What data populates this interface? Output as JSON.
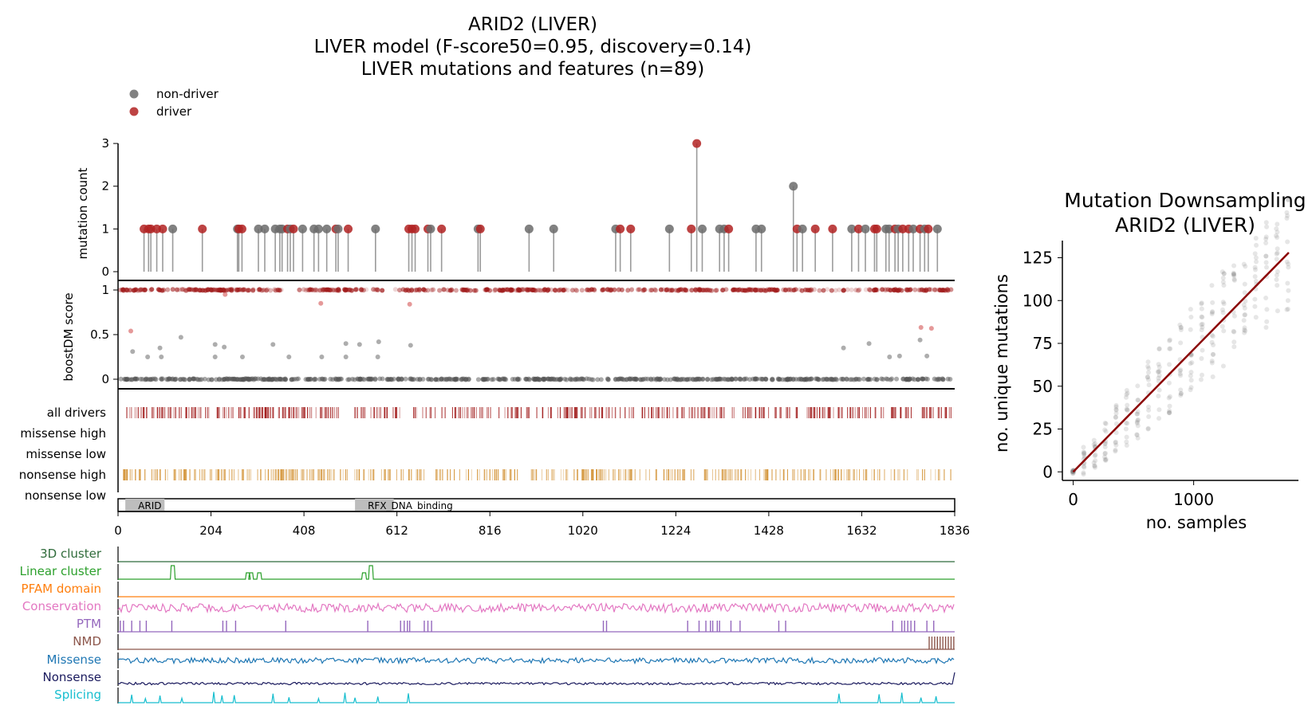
{
  "main_title": [
    "ARID2 (LIVER)",
    "LIVER model (F-score50=0.95, discovery=0.14)",
    "LIVER mutations and features (n=89)"
  ],
  "legend": [
    {
      "label": "non-driver",
      "color": "#6b6b6b"
    },
    {
      "label": "driver",
      "color": "#b22222"
    }
  ],
  "chart_data": [
    {
      "type": "scatter",
      "name": "needle plot",
      "ylabel": "mutation count",
      "ylim": [
        0,
        3
      ],
      "yticks": [
        "0",
        "1",
        "2",
        "3"
      ],
      "xlim": [
        0,
        1836
      ],
      "points": [
        {
          "pos": 57,
          "count": 1,
          "driver": true
        },
        {
          "pos": 67,
          "count": 1,
          "driver": true
        },
        {
          "pos": 72,
          "count": 1,
          "driver": true
        },
        {
          "pos": 85,
          "count": 1,
          "driver": true
        },
        {
          "pos": 98,
          "count": 1,
          "driver": true
        },
        {
          "pos": 120,
          "count": 1,
          "driver": false
        },
        {
          "pos": 185,
          "count": 1,
          "driver": true
        },
        {
          "pos": 262,
          "count": 1,
          "driver": false
        },
        {
          "pos": 265,
          "count": 1,
          "driver": true
        },
        {
          "pos": 272,
          "count": 1,
          "driver": true
        },
        {
          "pos": 308,
          "count": 1,
          "driver": false
        },
        {
          "pos": 322,
          "count": 1,
          "driver": false
        },
        {
          "pos": 345,
          "count": 1,
          "driver": false
        },
        {
          "pos": 355,
          "count": 1,
          "driver": false
        },
        {
          "pos": 360,
          "count": 1,
          "driver": false
        },
        {
          "pos": 372,
          "count": 1,
          "driver": true
        },
        {
          "pos": 378,
          "count": 1,
          "driver": false
        },
        {
          "pos": 385,
          "count": 1,
          "driver": true
        },
        {
          "pos": 405,
          "count": 1,
          "driver": false
        },
        {
          "pos": 430,
          "count": 1,
          "driver": false
        },
        {
          "pos": 440,
          "count": 1,
          "driver": false
        },
        {
          "pos": 458,
          "count": 1,
          "driver": false
        },
        {
          "pos": 478,
          "count": 1,
          "driver": true
        },
        {
          "pos": 483,
          "count": 1,
          "driver": false
        },
        {
          "pos": 505,
          "count": 1,
          "driver": true
        },
        {
          "pos": 565,
          "count": 1,
          "driver": false
        },
        {
          "pos": 638,
          "count": 1,
          "driver": true
        },
        {
          "pos": 645,
          "count": 1,
          "driver": true
        },
        {
          "pos": 652,
          "count": 1,
          "driver": true
        },
        {
          "pos": 680,
          "count": 1,
          "driver": true
        },
        {
          "pos": 686,
          "count": 1,
          "driver": false
        },
        {
          "pos": 710,
          "count": 1,
          "driver": true
        },
        {
          "pos": 790,
          "count": 1,
          "driver": false
        },
        {
          "pos": 795,
          "count": 1,
          "driver": true
        },
        {
          "pos": 902,
          "count": 1,
          "driver": false
        },
        {
          "pos": 956,
          "count": 1,
          "driver": false
        },
        {
          "pos": 1092,
          "count": 1,
          "driver": false
        },
        {
          "pos": 1102,
          "count": 1,
          "driver": true
        },
        {
          "pos": 1125,
          "count": 1,
          "driver": true
        },
        {
          "pos": 1210,
          "count": 1,
          "driver": false
        },
        {
          "pos": 1258,
          "count": 1,
          "driver": true
        },
        {
          "pos": 1270,
          "count": 3,
          "driver": true
        },
        {
          "pos": 1282,
          "count": 1,
          "driver": false
        },
        {
          "pos": 1320,
          "count": 1,
          "driver": false
        },
        {
          "pos": 1330,
          "count": 1,
          "driver": false
        },
        {
          "pos": 1340,
          "count": 1,
          "driver": true
        },
        {
          "pos": 1400,
          "count": 1,
          "driver": false
        },
        {
          "pos": 1412,
          "count": 1,
          "driver": false
        },
        {
          "pos": 1482,
          "count": 2,
          "driver": false
        },
        {
          "pos": 1490,
          "count": 1,
          "driver": true
        },
        {
          "pos": 1502,
          "count": 1,
          "driver": false
        },
        {
          "pos": 1530,
          "count": 1,
          "driver": true
        },
        {
          "pos": 1568,
          "count": 1,
          "driver": true
        },
        {
          "pos": 1610,
          "count": 1,
          "driver": false
        },
        {
          "pos": 1625,
          "count": 1,
          "driver": true
        },
        {
          "pos": 1640,
          "count": 1,
          "driver": false
        },
        {
          "pos": 1660,
          "count": 1,
          "driver": true
        },
        {
          "pos": 1665,
          "count": 1,
          "driver": true
        },
        {
          "pos": 1685,
          "count": 1,
          "driver": false
        },
        {
          "pos": 1692,
          "count": 1,
          "driver": false
        },
        {
          "pos": 1705,
          "count": 1,
          "driver": true
        },
        {
          "pos": 1712,
          "count": 1,
          "driver": false
        },
        {
          "pos": 1722,
          "count": 1,
          "driver": true
        },
        {
          "pos": 1735,
          "count": 1,
          "driver": true
        },
        {
          "pos": 1745,
          "count": 1,
          "driver": false
        },
        {
          "pos": 1760,
          "count": 1,
          "driver": true
        },
        {
          "pos": 1770,
          "count": 1,
          "driver": false
        },
        {
          "pos": 1778,
          "count": 1,
          "driver": true
        },
        {
          "pos": 1798,
          "count": 1,
          "driver": false
        }
      ]
    },
    {
      "type": "scatter",
      "name": "boostDM score track",
      "ylabel": "boostDM score",
      "ylim": [
        0,
        1
      ],
      "yticks": [
        "0",
        "0.5",
        "1"
      ],
      "xlim": [
        0,
        1836
      ],
      "outliers": [
        {
          "pos": 28,
          "score": 0.54,
          "driver": true
        },
        {
          "pos": 32,
          "score": 0.31,
          "driver": false
        },
        {
          "pos": 65,
          "score": 0.25,
          "driver": false
        },
        {
          "pos": 92,
          "score": 0.35,
          "driver": false
        },
        {
          "pos": 95,
          "score": 0.25,
          "driver": false
        },
        {
          "pos": 138,
          "score": 0.47,
          "driver": false
        },
        {
          "pos": 213,
          "score": 0.39,
          "driver": false
        },
        {
          "pos": 213,
          "score": 0.25,
          "driver": false
        },
        {
          "pos": 233,
          "score": 0.36,
          "driver": false
        },
        {
          "pos": 235,
          "score": 0.95,
          "driver": true
        },
        {
          "pos": 273,
          "score": 0.25,
          "driver": false
        },
        {
          "pos": 340,
          "score": 0.39,
          "driver": false
        },
        {
          "pos": 375,
          "score": 0.25,
          "driver": false
        },
        {
          "pos": 445,
          "score": 0.85,
          "driver": true
        },
        {
          "pos": 447,
          "score": 0.25,
          "driver": false
        },
        {
          "pos": 500,
          "score": 0.4,
          "driver": false
        },
        {
          "pos": 500,
          "score": 0.25,
          "driver": false
        },
        {
          "pos": 530,
          "score": 0.39,
          "driver": false
        },
        {
          "pos": 570,
          "score": 0.25,
          "driver": false
        },
        {
          "pos": 572,
          "score": 0.42,
          "driver": false
        },
        {
          "pos": 640,
          "score": 0.84,
          "driver": true
        },
        {
          "pos": 642,
          "score": 0.38,
          "driver": false
        },
        {
          "pos": 1592,
          "score": 0.35,
          "driver": false
        },
        {
          "pos": 1648,
          "score": 0.4,
          "driver": false
        },
        {
          "pos": 1693,
          "score": 0.25,
          "driver": false
        },
        {
          "pos": 1715,
          "score": 0.26,
          "driver": false
        },
        {
          "pos": 1760,
          "score": 0.44,
          "driver": false
        },
        {
          "pos": 1762,
          "score": 0.58,
          "driver": true
        },
        {
          "pos": 1785,
          "score": 0.57,
          "driver": true
        },
        {
          "pos": 1775,
          "score": 0.26,
          "driver": false
        }
      ]
    },
    {
      "type": "heatmap",
      "name": "consequence tracks",
      "rows": [
        "all drivers",
        "missense high",
        "missense low",
        "nonsense high",
        "nonsense low"
      ],
      "row_colors": [
        "#a11b1b",
        "#a11b1b",
        "#a11b1b",
        "#d4953a",
        "#d4953a"
      ],
      "domains": [
        {
          "name": "ARID",
          "start": 16,
          "end": 102
        },
        {
          "name": "RFX_DNA_binding",
          "start": 520,
          "end": 605
        }
      ],
      "xticks": [
        "0",
        "204",
        "408",
        "612",
        "816",
        "1020",
        "1224",
        "1428",
        "1632",
        "1836"
      ],
      "xlim": [
        0,
        1836
      ]
    },
    {
      "type": "line",
      "name": "feature tracks",
      "tracks": [
        {
          "label": "3D cluster",
          "color": "#2f6b3a"
        },
        {
          "label": "Linear cluster",
          "color": "#2ca02c"
        },
        {
          "label": "PFAM domain",
          "color": "#ff7f0e"
        },
        {
          "label": "Conservation",
          "color": "#e377c2"
        },
        {
          "label": "PTM",
          "color": "#9467bd"
        },
        {
          "label": "NMD",
          "color": "#8c564b"
        },
        {
          "label": "Missense",
          "color": "#1f77b4"
        },
        {
          "label": "Nonsense",
          "color": "#1a1a5e"
        },
        {
          "label": "Splicing",
          "color": "#17becf"
        }
      ],
      "linear_cluster_peaks": [
        120,
        285,
        292,
        310,
        540,
        555
      ],
      "ptm_sites": [
        5,
        12,
        30,
        48,
        62,
        118,
        230,
        238,
        258,
        368,
        548,
        620,
        628,
        635,
        640,
        672,
        680,
        688,
        1065,
        1072,
        1250,
        1275,
        1290,
        1300,
        1305,
        1315,
        1320,
        1345,
        1365,
        1450,
        1465,
        1700,
        1720,
        1726,
        1733,
        1740,
        1748,
        1775,
        1790
      ],
      "splicing_peaks": [
        30,
        60,
        92,
        140,
        210,
        228,
        255,
        340,
        375,
        440,
        498,
        520,
        570,
        637,
        1582,
        1670,
        1720,
        1762,
        1795
      ],
      "nmd_start": 1780
    },
    {
      "type": "scatter",
      "name": "Mutation Downsampling",
      "title": [
        "Mutation Downsampling",
        "ARID2 (LIVER)"
      ],
      "xlabel": "no. samples",
      "ylabel": "no. unique mutations",
      "xlim": [
        -90,
        1870
      ],
      "ylim": [
        -5,
        135
      ],
      "xticks": [
        0,
        1000
      ],
      "yticks": [
        0,
        25,
        50,
        75,
        100,
        125
      ],
      "fit_line": {
        "x": [
          0,
          1790
        ],
        "y": [
          0,
          128
        ]
      },
      "sample_steps": [
        0,
        89,
        178,
        267,
        356,
        445,
        534,
        623,
        712,
        801,
        890,
        979,
        1068,
        1157,
        1246,
        1335,
        1424,
        1513,
        1602,
        1691,
        1780
      ]
    }
  ]
}
